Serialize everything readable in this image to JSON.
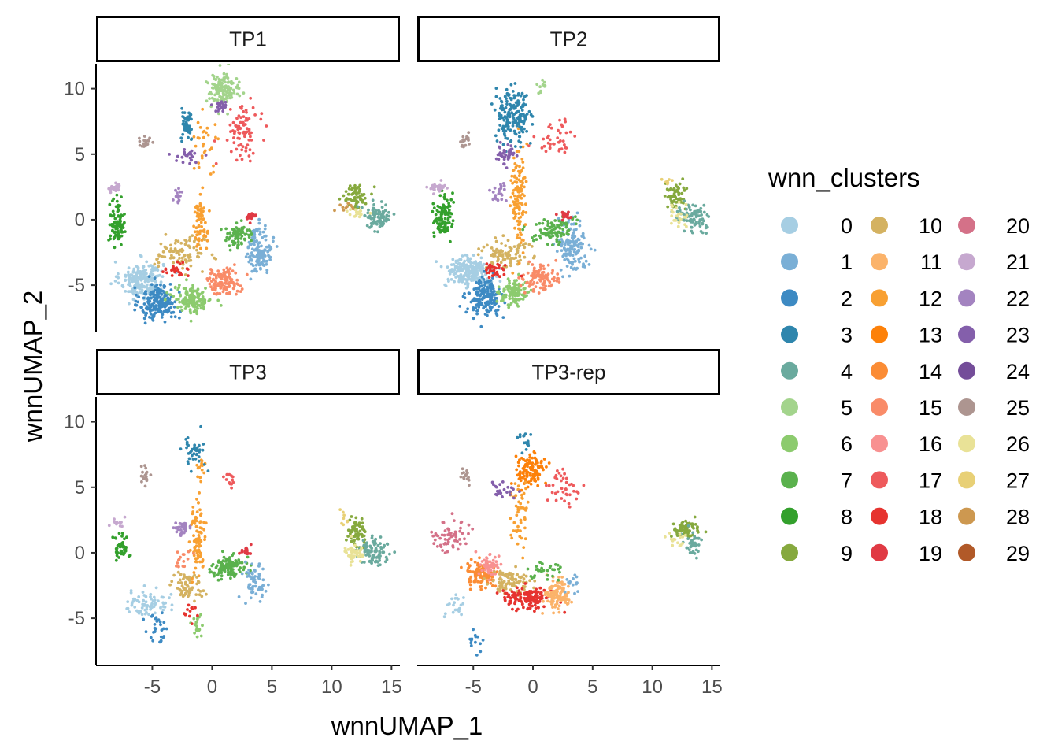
{
  "chart_data": {
    "type": "scatter",
    "xlabel": "wnnUMAP_1",
    "ylabel": "wnnUMAP_2",
    "xlim": [
      -9.7,
      15.7
    ],
    "ylim": [
      -8.6,
      11.9
    ],
    "x_ticks": [
      -5,
      0,
      5,
      10,
      15
    ],
    "y_ticks": [
      -5,
      0,
      5,
      10
    ],
    "x_tick_labels": [
      "-5",
      "0",
      "5",
      "10",
      "15"
    ],
    "y_tick_labels": [
      "-5",
      "0",
      "5",
      "10"
    ],
    "grid": false,
    "facets": [
      "TP1",
      "TP2",
      "TP3",
      "TP3-rep"
    ],
    "legend": {
      "title": "wnn_clusters",
      "placement": "right",
      "columns": 3,
      "entries": [
        {
          "label": "0",
          "color": "#a6cee3"
        },
        {
          "label": "1",
          "color": "#7aafd6"
        },
        {
          "label": "2",
          "color": "#3d8ac3"
        },
        {
          "label": "3",
          "color": "#2f86ad"
        },
        {
          "label": "4",
          "color": "#6aaa9e"
        },
        {
          "label": "5",
          "color": "#a3d48c"
        },
        {
          "label": "6",
          "color": "#8ccb6e"
        },
        {
          "label": "7",
          "color": "#5ab14d"
        },
        {
          "label": "8",
          "color": "#33a02c"
        },
        {
          "label": "9",
          "color": "#86a93e"
        },
        {
          "label": "10",
          "color": "#d4b261"
        },
        {
          "label": "11",
          "color": "#fbb36a"
        },
        {
          "label": "12",
          "color": "#f8a032"
        },
        {
          "label": "13",
          "color": "#fd8109"
        },
        {
          "label": "14",
          "color": "#fb8c35"
        },
        {
          "label": "15",
          "color": "#f98b68"
        },
        {
          "label": "16",
          "color": "#f89191"
        },
        {
          "label": "17",
          "color": "#ee5a5c"
        },
        {
          "label": "18",
          "color": "#e6332f"
        },
        {
          "label": "19",
          "color": "#e03a44"
        },
        {
          "label": "20",
          "color": "#d47188"
        },
        {
          "label": "21",
          "color": "#c6a8cf"
        },
        {
          "label": "22",
          "color": "#a383c0"
        },
        {
          "label": "23",
          "color": "#845fab"
        },
        {
          "label": "24",
          "color": "#744d99"
        },
        {
          "label": "25",
          "color": "#ad9590"
        },
        {
          "label": "26",
          "color": "#e9e297"
        },
        {
          "label": "27",
          "color": "#e8d076"
        },
        {
          "label": "28",
          "color": "#cd9850"
        },
        {
          "label": "29",
          "color": "#b15928"
        }
      ]
    },
    "clusters": {
      "TP1": [
        {
          "c": 0,
          "x": -5.9,
          "y": -4.6,
          "sx": 0.9,
          "sy": 0.7,
          "n": 220
        },
        {
          "c": 2,
          "x": -4.4,
          "y": -6.3,
          "sx": 0.8,
          "sy": 0.7,
          "n": 200
        },
        {
          "c": 6,
          "x": -1.6,
          "y": -6.1,
          "sx": 0.8,
          "sy": 0.5,
          "n": 150
        },
        {
          "c": 15,
          "x": 0.9,
          "y": -4.7,
          "sx": 0.7,
          "sy": 0.5,
          "n": 110
        },
        {
          "c": 1,
          "x": 4.0,
          "y": -2.3,
          "sx": 0.5,
          "sy": 0.9,
          "n": 140
        },
        {
          "c": 7,
          "x": 2.2,
          "y": -1.2,
          "sx": 0.7,
          "sy": 0.4,
          "n": 80
        },
        {
          "c": 10,
          "x": -2.6,
          "y": -2.6,
          "sx": 1.0,
          "sy": 0.6,
          "n": 90
        },
        {
          "c": 12,
          "x": -1.0,
          "y": -0.4,
          "sx": 0.3,
          "sy": 1.2,
          "n": 70
        },
        {
          "c": 12,
          "x": -0.4,
          "y": 6.2,
          "sx": 0.5,
          "sy": 1.0,
          "n": 30
        },
        {
          "c": 18,
          "x": -3.0,
          "y": -3.9,
          "sx": 0.5,
          "sy": 0.3,
          "n": 25
        },
        {
          "c": 19,
          "x": 3.2,
          "y": 0.2,
          "sx": 0.25,
          "sy": 0.2,
          "n": 20
        },
        {
          "c": 8,
          "x": -7.9,
          "y": -0.2,
          "sx": 0.3,
          "sy": 0.8,
          "n": 90
        },
        {
          "c": 21,
          "x": -8.2,
          "y": 2.4,
          "sx": 0.3,
          "sy": 0.2,
          "n": 25
        },
        {
          "c": 25,
          "x": -5.6,
          "y": 5.9,
          "sx": 0.25,
          "sy": 0.2,
          "n": 20
        },
        {
          "c": 3,
          "x": -2.1,
          "y": 7.2,
          "sx": 0.25,
          "sy": 0.6,
          "n": 50
        },
        {
          "c": 5,
          "x": 0.9,
          "y": 9.9,
          "sx": 0.7,
          "sy": 0.6,
          "n": 130
        },
        {
          "c": 17,
          "x": 2.7,
          "y": 6.8,
          "sx": 0.6,
          "sy": 0.9,
          "n": 80
        },
        {
          "c": 23,
          "x": 0.6,
          "y": 8.6,
          "sx": 0.3,
          "sy": 0.3,
          "n": 25
        },
        {
          "c": 23,
          "x": -2.0,
          "y": 4.8,
          "sx": 0.6,
          "sy": 0.3,
          "n": 25
        },
        {
          "c": 22,
          "x": -2.8,
          "y": 1.9,
          "sx": 0.2,
          "sy": 0.3,
          "n": 15
        },
        {
          "c": 9,
          "x": 12.0,
          "y": 1.8,
          "sx": 0.5,
          "sy": 0.5,
          "n": 60
        },
        {
          "c": 4,
          "x": 13.8,
          "y": 0.2,
          "sx": 0.6,
          "sy": 0.5,
          "n": 90
        },
        {
          "c": 26,
          "x": 12.2,
          "y": 0.5,
          "sx": 0.5,
          "sy": 0.3,
          "n": 20
        },
        {
          "c": 28,
          "x": 11.2,
          "y": 0.9,
          "sx": 0.3,
          "sy": 0.2,
          "n": 10
        }
      ],
      "TP2": [
        {
          "c": 0,
          "x": -5.4,
          "y": -4.0,
          "sx": 1.0,
          "sy": 0.6,
          "n": 220
        },
        {
          "c": 2,
          "x": -4.0,
          "y": -5.9,
          "sx": 0.7,
          "sy": 0.7,
          "n": 180
        },
        {
          "c": 6,
          "x": -1.5,
          "y": -5.6,
          "sx": 0.6,
          "sy": 0.5,
          "n": 110
        },
        {
          "c": 15,
          "x": 0.6,
          "y": -4.5,
          "sx": 0.7,
          "sy": 0.5,
          "n": 100
        },
        {
          "c": 1,
          "x": 3.3,
          "y": -1.9,
          "sx": 0.6,
          "sy": 1.0,
          "n": 140
        },
        {
          "c": 7,
          "x": 1.8,
          "y": -0.8,
          "sx": 0.8,
          "sy": 0.5,
          "n": 100
        },
        {
          "c": 10,
          "x": -2.5,
          "y": -2.5,
          "sx": 1.0,
          "sy": 0.6,
          "n": 90
        },
        {
          "c": 12,
          "x": -1.2,
          "y": 1.8,
          "sx": 0.3,
          "sy": 2.0,
          "n": 120
        },
        {
          "c": 18,
          "x": -3.2,
          "y": -3.9,
          "sx": 0.6,
          "sy": 0.3,
          "n": 30
        },
        {
          "c": 19,
          "x": 2.8,
          "y": 0.3,
          "sx": 0.3,
          "sy": 0.2,
          "n": 20
        },
        {
          "c": 8,
          "x": -7.5,
          "y": 0.2,
          "sx": 0.4,
          "sy": 0.8,
          "n": 100
        },
        {
          "c": 21,
          "x": -8.2,
          "y": 2.4,
          "sx": 0.4,
          "sy": 0.2,
          "n": 25
        },
        {
          "c": 22,
          "x": -2.8,
          "y": 2.1,
          "sx": 0.3,
          "sy": 0.4,
          "n": 25
        },
        {
          "c": 25,
          "x": -5.8,
          "y": 6.0,
          "sx": 0.2,
          "sy": 0.3,
          "n": 20
        },
        {
          "c": 3,
          "x": -1.7,
          "y": 8.0,
          "sx": 0.7,
          "sy": 1.0,
          "n": 180
        },
        {
          "c": 23,
          "x": -2.2,
          "y": 5.0,
          "sx": 0.4,
          "sy": 0.4,
          "n": 40
        },
        {
          "c": 17,
          "x": 2.0,
          "y": 6.2,
          "sx": 0.8,
          "sy": 0.6,
          "n": 40
        },
        {
          "c": 5,
          "x": 0.6,
          "y": 10.0,
          "sx": 0.3,
          "sy": 0.3,
          "n": 10
        },
        {
          "c": 9,
          "x": 12.0,
          "y": 1.8,
          "sx": 0.5,
          "sy": 0.5,
          "n": 60
        },
        {
          "c": 4,
          "x": 13.6,
          "y": 0.2,
          "sx": 0.7,
          "sy": 0.5,
          "n": 90
        },
        {
          "c": 26,
          "x": 12.1,
          "y": 0.3,
          "sx": 0.6,
          "sy": 0.4,
          "n": 25
        },
        {
          "c": 27,
          "x": 11.3,
          "y": 2.8,
          "sx": 0.2,
          "sy": 0.2,
          "n": 8
        }
      ],
      "TP3": [
        {
          "c": 0,
          "x": -5.4,
          "y": -3.8,
          "sx": 0.9,
          "sy": 0.5,
          "n": 70
        },
        {
          "c": 2,
          "x": -4.6,
          "y": -5.6,
          "sx": 0.4,
          "sy": 0.6,
          "n": 30
        },
        {
          "c": 6,
          "x": -1.3,
          "y": -5.6,
          "sx": 0.3,
          "sy": 0.5,
          "n": 20
        },
        {
          "c": 7,
          "x": 1.4,
          "y": -1.0,
          "sx": 0.7,
          "sy": 0.4,
          "n": 120
        },
        {
          "c": 1,
          "x": 3.6,
          "y": -2.4,
          "sx": 0.5,
          "sy": 0.8,
          "n": 60
        },
        {
          "c": 10,
          "x": -2.0,
          "y": -2.4,
          "sx": 0.8,
          "sy": 0.5,
          "n": 60
        },
        {
          "c": 12,
          "x": -1.2,
          "y": 1.0,
          "sx": 0.3,
          "sy": 1.2,
          "n": 90
        },
        {
          "c": 12,
          "x": -1.0,
          "y": 6.5,
          "sx": 0.2,
          "sy": 0.5,
          "n": 15
        },
        {
          "c": 3,
          "x": -1.5,
          "y": 7.7,
          "sx": 0.5,
          "sy": 0.7,
          "n": 40
        },
        {
          "c": 17,
          "x": 1.4,
          "y": 5.6,
          "sx": 0.3,
          "sy": 0.4,
          "n": 12
        },
        {
          "c": 8,
          "x": -7.5,
          "y": 0.4,
          "sx": 0.4,
          "sy": 0.5,
          "n": 40
        },
        {
          "c": 21,
          "x": -7.8,
          "y": 2.3,
          "sx": 0.4,
          "sy": 0.2,
          "n": 15
        },
        {
          "c": 22,
          "x": -2.6,
          "y": 1.9,
          "sx": 0.3,
          "sy": 0.3,
          "n": 30
        },
        {
          "c": 25,
          "x": -5.6,
          "y": 5.9,
          "sx": 0.2,
          "sy": 0.3,
          "n": 20
        },
        {
          "c": 15,
          "x": -2.5,
          "y": -0.6,
          "sx": 0.5,
          "sy": 0.4,
          "n": 15
        },
        {
          "c": 18,
          "x": -1.8,
          "y": -4.4,
          "sx": 0.3,
          "sy": 0.3,
          "n": 12
        },
        {
          "c": 19,
          "x": 2.8,
          "y": 0.1,
          "sx": 0.3,
          "sy": 0.2,
          "n": 15
        },
        {
          "c": 9,
          "x": 12.1,
          "y": 1.6,
          "sx": 0.4,
          "sy": 0.5,
          "n": 70
        },
        {
          "c": 4,
          "x": 13.4,
          "y": 0.0,
          "sx": 0.6,
          "sy": 0.5,
          "n": 90
        },
        {
          "c": 26,
          "x": 11.9,
          "y": 0.0,
          "sx": 0.4,
          "sy": 0.4,
          "n": 40
        },
        {
          "c": 27,
          "x": 11.0,
          "y": 2.8,
          "sx": 0.2,
          "sy": 0.3,
          "n": 8
        }
      ],
      "TP3-rep": [
        {
          "c": 14,
          "x": -4.4,
          "y": -1.6,
          "sx": 0.6,
          "sy": 0.5,
          "n": 110
        },
        {
          "c": 16,
          "x": -3.6,
          "y": -0.9,
          "sx": 0.4,
          "sy": 0.4,
          "n": 60
        },
        {
          "c": 10,
          "x": -1.8,
          "y": -2.3,
          "sx": 0.8,
          "sy": 0.5,
          "n": 90
        },
        {
          "c": 18,
          "x": -0.5,
          "y": -3.5,
          "sx": 1.0,
          "sy": 0.4,
          "n": 140
        },
        {
          "c": 11,
          "x": 2.1,
          "y": -3.2,
          "sx": 0.5,
          "sy": 0.6,
          "n": 110
        },
        {
          "c": 7,
          "x": 1.0,
          "y": -1.3,
          "sx": 0.8,
          "sy": 0.4,
          "n": 30
        },
        {
          "c": 1,
          "x": 3.4,
          "y": -2.2,
          "sx": 0.3,
          "sy": 0.5,
          "n": 15
        },
        {
          "c": 20,
          "x": -6.9,
          "y": 1.2,
          "sx": 0.8,
          "sy": 0.6,
          "n": 60
        },
        {
          "c": 13,
          "x": -0.2,
          "y": 6.3,
          "sx": 0.6,
          "sy": 0.6,
          "n": 110
        },
        {
          "c": 12,
          "x": -1.2,
          "y": 2.9,
          "sx": 0.4,
          "sy": 1.4,
          "n": 50
        },
        {
          "c": 17,
          "x": 2.6,
          "y": 4.8,
          "sx": 0.7,
          "sy": 0.8,
          "n": 40
        },
        {
          "c": 3,
          "x": -0.8,
          "y": 8.8,
          "sx": 0.3,
          "sy": 0.4,
          "n": 15
        },
        {
          "c": 23,
          "x": -2.6,
          "y": 4.8,
          "sx": 0.5,
          "sy": 0.3,
          "n": 25
        },
        {
          "c": 25,
          "x": -5.6,
          "y": 5.9,
          "sx": 0.2,
          "sy": 0.3,
          "n": 15
        },
        {
          "c": 0,
          "x": -6.5,
          "y": -4.0,
          "sx": 0.5,
          "sy": 0.5,
          "n": 20
        },
        {
          "c": 2,
          "x": -4.8,
          "y": -6.5,
          "sx": 0.3,
          "sy": 0.5,
          "n": 15
        },
        {
          "c": 9,
          "x": 12.8,
          "y": 1.8,
          "sx": 0.6,
          "sy": 0.3,
          "n": 70
        },
        {
          "c": 4,
          "x": 13.4,
          "y": 0.7,
          "sx": 0.4,
          "sy": 0.5,
          "n": 40
        },
        {
          "c": 26,
          "x": 11.8,
          "y": 0.9,
          "sx": 0.4,
          "sy": 0.4,
          "n": 15
        }
      ]
    }
  }
}
